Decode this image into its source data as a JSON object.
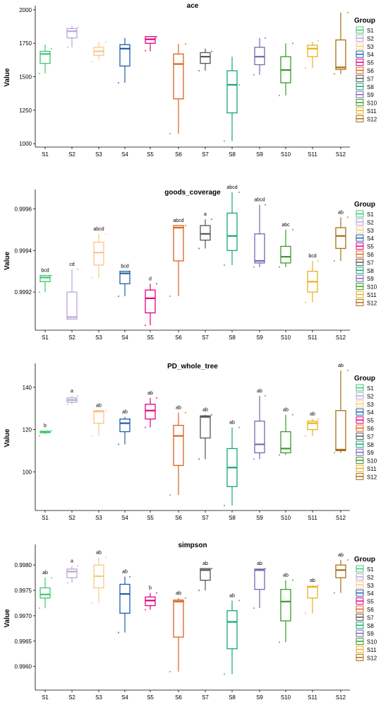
{
  "colors": {
    "S1": "#3ec76f",
    "S2": "#b9a7d6",
    "S3": "#f9c78a",
    "S4": "#1f5fa3",
    "S5": "#e2007e",
    "S6": "#d9621f",
    "S7": "#555555",
    "S8": "#17a673",
    "S9": "#7a66b0",
    "S10": "#3a9a2a",
    "S11": "#e9b21e",
    "S12": "#a86e15"
  },
  "legend": {
    "title": "Group",
    "items": [
      "S1",
      "S2",
      "S3",
      "S4",
      "S5",
      "S6",
      "S7",
      "S8",
      "S9",
      "S10",
      "S11",
      "S12"
    ]
  },
  "chart_data": [
    {
      "type": "box",
      "title": "ace",
      "ylabel": "Value",
      "categories": [
        "S1",
        "S2",
        "S3",
        "S4",
        "S5",
        "S6",
        "S7",
        "S8",
        "S9",
        "S10",
        "S11",
        "S12"
      ],
      "ylim": [
        980,
        2010
      ],
      "yticks": [
        1000,
        1250,
        1500,
        1750,
        2000
      ],
      "ytick_labels": [
        "1000",
        "1250",
        "1500",
        "1750",
        "2000"
      ],
      "boxes": [
        {
          "group": "S1",
          "min": 1525,
          "q1": 1600,
          "median": 1670,
          "q3": 1690,
          "max": 1740,
          "points": [
            1525,
            1710
          ]
        },
        {
          "group": "S2",
          "min": 1720,
          "q1": 1790,
          "median": 1840,
          "q3": 1860,
          "max": 1880,
          "points": [
            1720,
            1870
          ]
        },
        {
          "group": "S3",
          "min": 1620,
          "q1": 1660,
          "median": 1690,
          "q3": 1720,
          "max": 1760,
          "points": [
            1610,
            1760
          ]
        },
        {
          "group": "S4",
          "min": 1455,
          "q1": 1580,
          "median": 1710,
          "q3": 1740,
          "max": 1790,
          "points": [
            1455,
            1710
          ]
        },
        {
          "group": "S5",
          "min": 1690,
          "q1": 1750,
          "median": 1780,
          "q3": 1800,
          "max": 1800,
          "points": [
            1695,
            1800
          ]
        },
        {
          "group": "S6",
          "min": 1075,
          "q1": 1335,
          "median": 1595,
          "q3": 1670,
          "max": 1745,
          "points": [
            1075,
            1745
          ]
        },
        {
          "group": "S7",
          "min": 1545,
          "q1": 1600,
          "median": 1650,
          "q3": 1680,
          "max": 1710,
          "points": [
            1545,
            1690
          ]
        },
        {
          "group": "S8",
          "min": 1020,
          "q1": 1230,
          "median": 1440,
          "q3": 1545,
          "max": 1650,
          "points": [
            1020,
            1440
          ]
        },
        {
          "group": "S9",
          "min": 1515,
          "q1": 1590,
          "median": 1650,
          "q3": 1720,
          "max": 1790,
          "points": [
            1515,
            1790
          ]
        },
        {
          "group": "S10",
          "min": 1360,
          "q1": 1455,
          "median": 1550,
          "q3": 1650,
          "max": 1750,
          "points": [
            1360,
            1750
          ]
        },
        {
          "group": "S11",
          "min": 1565,
          "q1": 1650,
          "median": 1710,
          "q3": 1735,
          "max": 1760,
          "points": [
            1565,
            1770
          ]
        },
        {
          "group": "S12",
          "min": 1520,
          "q1": 1555,
          "median": 1570,
          "q3": 1775,
          "max": 1980,
          "points": [
            1520,
            1980
          ]
        }
      ],
      "sig_labels": []
    },
    {
      "type": "box",
      "title": "goods_coverage",
      "ylabel": "Value",
      "categories": [
        "S1",
        "S2",
        "S3",
        "S4",
        "S5",
        "S6",
        "S7",
        "S8",
        "S9",
        "S10",
        "S11",
        "S12"
      ],
      "ylim": [
        0.99902,
        0.99968
      ],
      "yticks": [
        0.9992,
        0.9994,
        0.9996
      ],
      "ytick_labels": [
        "0.9992",
        "0.9994",
        "0.9996"
      ],
      "boxes": [
        {
          "group": "S1",
          "min": 0.9992,
          "q1": 0.99925,
          "median": 0.99927,
          "q3": 0.99928,
          "max": 0.99928,
          "points": [
            0.9992,
            0.99928
          ]
        },
        {
          "group": "S2",
          "min": 0.99907,
          "q1": 0.99907,
          "median": 0.99908,
          "q3": 0.9992,
          "max": 0.99931,
          "points": [
            0.99907,
            0.99931
          ]
        },
        {
          "group": "S3",
          "min": 0.99927,
          "q1": 0.99933,
          "median": 0.99939,
          "q3": 0.99944,
          "max": 0.99948,
          "points": [
            0.99927,
            0.99948
          ]
        },
        {
          "group": "S4",
          "min": 0.99918,
          "q1": 0.99924,
          "median": 0.99929,
          "q3": 0.9993,
          "max": 0.9993,
          "points": [
            0.99918,
            0.9993
          ]
        },
        {
          "group": "S5",
          "min": 0.99904,
          "q1": 0.9991,
          "median": 0.99917,
          "q3": 0.99921,
          "max": 0.99924,
          "points": [
            0.99904,
            0.99924
          ]
        },
        {
          "group": "S6",
          "min": 0.99918,
          "q1": 0.99935,
          "median": 0.99951,
          "q3": 0.99952,
          "max": 0.99952,
          "points": [
            0.99918,
            0.99952
          ]
        },
        {
          "group": "S7",
          "min": 0.99941,
          "q1": 0.99945,
          "median": 0.99948,
          "q3": 0.99952,
          "max": 0.99955,
          "points": [
            0.99941,
            0.99955
          ]
        },
        {
          "group": "S8",
          "min": 0.99933,
          "q1": 0.9994,
          "median": 0.99947,
          "q3": 0.99958,
          "max": 0.99968,
          "points": [
            0.99933,
            0.99968
          ]
        },
        {
          "group": "S9",
          "min": 0.99932,
          "q1": 0.99934,
          "median": 0.99935,
          "q3": 0.99948,
          "max": 0.99962,
          "points": [
            0.99932,
            0.99962
          ]
        },
        {
          "group": "S10",
          "min": 0.99932,
          "q1": 0.99934,
          "median": 0.99937,
          "q3": 0.99942,
          "max": 0.9995,
          "points": [
            0.99932,
            0.9995
          ]
        },
        {
          "group": "S11",
          "min": 0.99915,
          "q1": 0.9992,
          "median": 0.99925,
          "q3": 0.9993,
          "max": 0.99935,
          "points": [
            0.99915,
            0.99935
          ]
        },
        {
          "group": "S12",
          "min": 0.99935,
          "q1": 0.99941,
          "median": 0.99947,
          "q3": 0.99951,
          "max": 0.99956,
          "points": [
            0.99935,
            0.99956
          ]
        }
      ],
      "sig_labels": [
        "bcd",
        "cd",
        "abcd",
        "bcd",
        "d",
        "abcd",
        "a",
        "abcd",
        "abcd",
        "abc",
        "bcd",
        "ab"
      ]
    },
    {
      "type": "box",
      "title": "PD_whole_tree",
      "ylabel": "Value",
      "categories": [
        "S1",
        "S2",
        "S3",
        "S4",
        "S5",
        "S6",
        "S7",
        "S8",
        "S9",
        "S10",
        "S11",
        "S12"
      ],
      "ylim": [
        82,
        150
      ],
      "yticks": [
        100,
        120,
        140
      ],
      "ytick_labels": [
        "100",
        "120",
        "140"
      ],
      "boxes": [
        {
          "group": "S1",
          "min": 118,
          "q1": 118.5,
          "median": 118.8,
          "q3": 119.2,
          "max": 119.5,
          "points": [
            117,
            119.5
          ]
        },
        {
          "group": "S2",
          "min": 132,
          "q1": 133,
          "median": 134,
          "q3": 135,
          "max": 136,
          "points": [
            132,
            136
          ]
        },
        {
          "group": "S3",
          "min": 117,
          "q1": 123,
          "median": 128.5,
          "q3": 129,
          "max": 129,
          "points": [
            117,
            129
          ]
        },
        {
          "group": "S4",
          "min": 113,
          "q1": 119,
          "median": 123,
          "q3": 125,
          "max": 126,
          "points": [
            113,
            125
          ]
        },
        {
          "group": "S5",
          "min": 121,
          "q1": 125,
          "median": 129,
          "q3": 132,
          "max": 135,
          "points": [
            121,
            135
          ]
        },
        {
          "group": "S6",
          "min": 89,
          "q1": 103,
          "median": 117,
          "q3": 122,
          "max": 128,
          "points": [
            89,
            128
          ]
        },
        {
          "group": "S7",
          "min": 106,
          "q1": 116,
          "median": 126,
          "q3": 126.5,
          "max": 127,
          "points": [
            106,
            127
          ]
        },
        {
          "group": "S8",
          "min": 84,
          "q1": 93,
          "median": 102,
          "q3": 111,
          "max": 121,
          "points": [
            84,
            121
          ]
        },
        {
          "group": "S9",
          "min": 106,
          "q1": 109,
          "median": 113,
          "q3": 124,
          "max": 136,
          "points": [
            106,
            136
          ]
        },
        {
          "group": "S10",
          "min": 108,
          "q1": 109,
          "median": 111,
          "q3": 119,
          "max": 127,
          "points": [
            108,
            127
          ]
        },
        {
          "group": "S11",
          "min": 117,
          "q1": 120,
          "median": 123,
          "q3": 124,
          "max": 125,
          "points": [
            117,
            125
          ]
        },
        {
          "group": "S12",
          "min": 109,
          "q1": 110,
          "median": 110.5,
          "q3": 129,
          "max": 148,
          "points": [
            109,
            148
          ]
        }
      ],
      "sig_labels": [
        "b",
        "a",
        "ab",
        "ab",
        "ab",
        "ab",
        "ab",
        "ab",
        "ab",
        "ab",
        "ab",
        "ab"
      ]
    },
    {
      "type": "box",
      "title": "simpson",
      "ylabel": "Value",
      "categories": [
        "S1",
        "S2",
        "S3",
        "S4",
        "S5",
        "S6",
        "S7",
        "S8",
        "S9",
        "S10",
        "S11",
        "S12"
      ],
      "ylim": [
        0.99555,
        0.99835
      ],
      "yticks": [
        0.996,
        0.9965,
        0.997,
        0.9975,
        0.998
      ],
      "ytick_labels": [
        "0.9960",
        "0.9965",
        "0.9970",
        "0.9975",
        "0.9980"
      ],
      "boxes": [
        {
          "group": "S1",
          "min": 0.99715,
          "q1": 0.99735,
          "median": 0.99742,
          "q3": 0.99755,
          "max": 0.99775,
          "points": [
            0.99715,
            0.99775
          ]
        },
        {
          "group": "S2",
          "min": 0.99765,
          "q1": 0.99775,
          "median": 0.99787,
          "q3": 0.99792,
          "max": 0.99798,
          "points": [
            0.99765,
            0.99798
          ]
        },
        {
          "group": "S3",
          "min": 0.99725,
          "q1": 0.99755,
          "median": 0.99778,
          "q3": 0.998,
          "max": 0.99815,
          "points": [
            0.99725,
            0.99815
          ]
        },
        {
          "group": "S4",
          "min": 0.99667,
          "q1": 0.99705,
          "median": 0.99743,
          "q3": 0.99762,
          "max": 0.99777,
          "points": [
            0.99667,
            0.99777
          ]
        },
        {
          "group": "S5",
          "min": 0.99712,
          "q1": 0.9972,
          "median": 0.9973,
          "q3": 0.99737,
          "max": 0.99745,
          "points": [
            0.99712,
            0.99745
          ]
        },
        {
          "group": "S6",
          "min": 0.9959,
          "q1": 0.99658,
          "median": 0.99728,
          "q3": 0.99731,
          "max": 0.99735,
          "points": [
            0.9959,
            0.99735
          ]
        },
        {
          "group": "S7",
          "min": 0.9975,
          "q1": 0.9977,
          "median": 0.9979,
          "q3": 0.99793,
          "max": 0.99793,
          "points": [
            0.9975,
            0.99793
          ]
        },
        {
          "group": "S8",
          "min": 0.99585,
          "q1": 0.99635,
          "median": 0.99688,
          "q3": 0.9971,
          "max": 0.9973,
          "points": [
            0.99585,
            0.9973
          ]
        },
        {
          "group": "S9",
          "min": 0.99715,
          "q1": 0.99752,
          "median": 0.9979,
          "q3": 0.99792,
          "max": 0.99793,
          "points": [
            0.99715,
            0.99793
          ]
        },
        {
          "group": "S10",
          "min": 0.99648,
          "q1": 0.9969,
          "median": 0.99728,
          "q3": 0.99752,
          "max": 0.9977,
          "points": [
            0.99648,
            0.9977
          ]
        },
        {
          "group": "S11",
          "min": 0.99705,
          "q1": 0.99735,
          "median": 0.99757,
          "q3": 0.99758,
          "max": 0.9976,
          "points": [
            0.99705,
            0.9976
          ]
        },
        {
          "group": "S12",
          "min": 0.99745,
          "q1": 0.99775,
          "median": 0.9979,
          "q3": 0.998,
          "max": 0.9981,
          "points": [
            0.99745,
            0.9981
          ]
        }
      ],
      "sig_labels": [
        "ab",
        "a",
        "ab",
        "ab",
        "b",
        "ab",
        "ab",
        "ab",
        "ab",
        "ab",
        "ab",
        "ab"
      ]
    }
  ]
}
